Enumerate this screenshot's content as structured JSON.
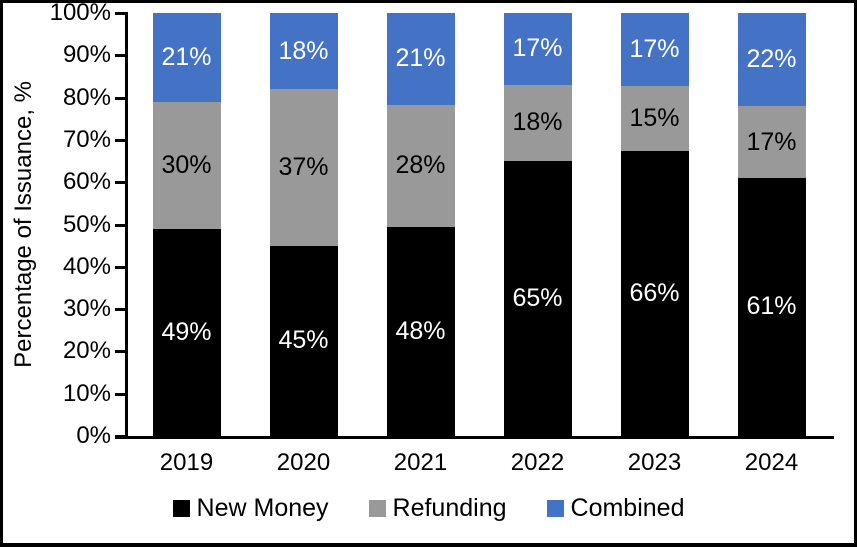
{
  "chart_data": {
    "type": "bar",
    "stacked": true,
    "title": "",
    "xlabel": "",
    "ylabel": "Percentage of Issuance, %",
    "ylim": [
      0,
      100
    ],
    "grid": false,
    "legend_position": "bottom",
    "value_suffix": "%",
    "categories": [
      "2019",
      "2020",
      "2021",
      "2022",
      "2023",
      "2024"
    ],
    "y_ticks": [
      "0%",
      "10%",
      "20%",
      "30%",
      "40%",
      "50%",
      "60%",
      "70%",
      "80%",
      "90%",
      "100%"
    ],
    "series": [
      {
        "name": "New Money",
        "color": "#000000",
        "label_color": "#ffffff",
        "values": [
          49,
          45,
          48,
          65,
          66,
          61
        ]
      },
      {
        "name": "Refunding",
        "color": "#999999",
        "label_color": "#000000",
        "values": [
          30,
          37,
          28,
          18,
          15,
          17
        ]
      },
      {
        "name": "Combined",
        "color": "#4472c4",
        "label_color": "#ffffff",
        "values": [
          21,
          18,
          21,
          17,
          17,
          22
        ]
      }
    ]
  }
}
